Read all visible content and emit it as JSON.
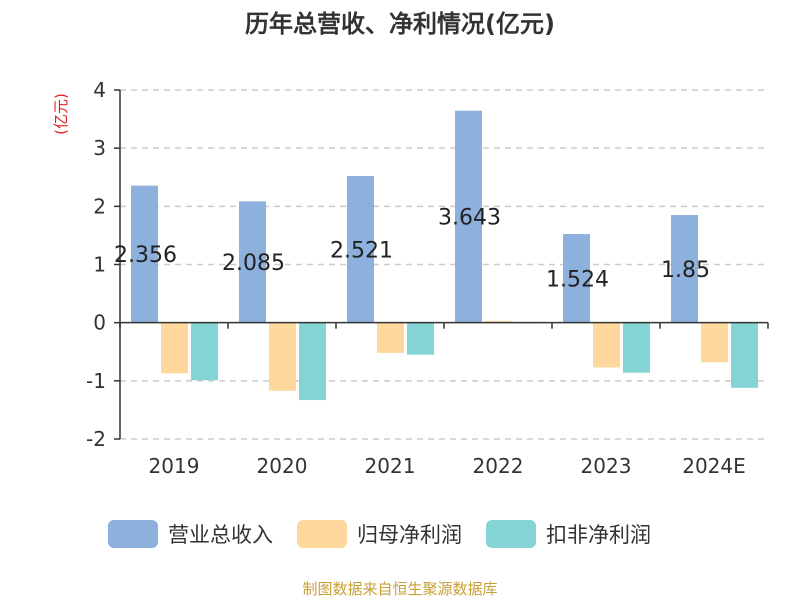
{
  "title": "历年总营收、净利情况(亿元)",
  "source": "制图数据来自恒生聚源数据库",
  "colors": {
    "revenue": "#8eb0dc",
    "net_profit": "#fdd79c",
    "deducted_profit": "#84d4d6",
    "grid": "#cccccc",
    "axis": "#333333"
  },
  "chart_data": {
    "type": "bar",
    "title": "历年总营收、净利情况(亿元)",
    "ylabel": "(亿元)",
    "xlabel": "",
    "ylim": [
      -2,
      4
    ],
    "yticks": [
      4,
      3,
      2,
      1,
      0,
      -1,
      -2
    ],
    "grid": true,
    "legend_position": "bottom",
    "categories": [
      "2019",
      "2020",
      "2021",
      "2022",
      "2023",
      "2024E"
    ],
    "series": [
      {
        "name": "营业总收入",
        "values": [
          2.356,
          2.085,
          2.521,
          3.643,
          1.524,
          1.85
        ],
        "labels": [
          "2.356",
          "2.085",
          "2.521",
          "3.643",
          "1.524",
          "1.85"
        ]
      },
      {
        "name": "归母净利润",
        "values": [
          -0.87,
          -1.17,
          -0.52,
          0.03,
          -0.77,
          -0.68
        ]
      },
      {
        "name": "扣非净利润",
        "values": [
          -0.99,
          -1.33,
          -0.55,
          -0.01,
          -0.86,
          -1.12
        ]
      }
    ]
  }
}
